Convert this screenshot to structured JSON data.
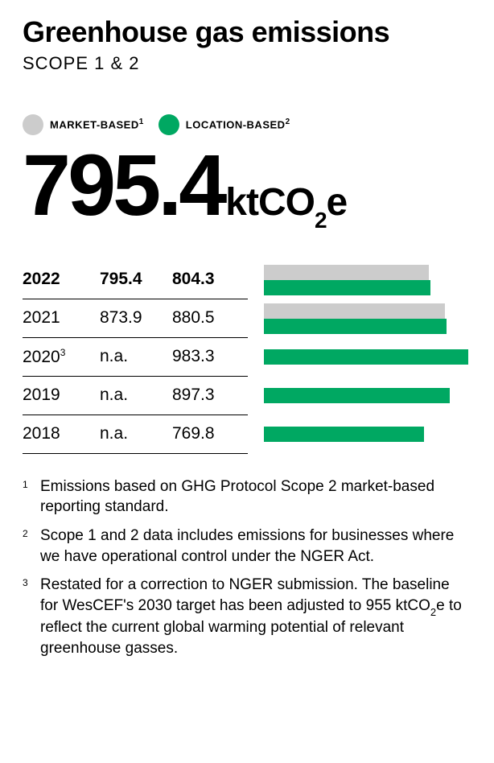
{
  "title": "Greenhouse gas emissions",
  "subtitle": "SCOPE 1 & 2",
  "legend": {
    "market": {
      "label": "MARKET-BASED",
      "sup": "1",
      "color": "#cccccc"
    },
    "location": {
      "label": "LOCATION-BASED",
      "sup": "2",
      "color": "#00a862"
    }
  },
  "hero": {
    "value": "795.4",
    "unit_prefix": "ktCO",
    "unit_sub": "2",
    "unit_suffix": "e"
  },
  "chart": {
    "max_value": 1000,
    "colors": {
      "market": "#cccccc",
      "location": "#00a862"
    },
    "rows": [
      {
        "year": "2022",
        "year_sup": "",
        "market": "795.4",
        "location": "804.3",
        "market_w": 79.5,
        "location_w": 80.4,
        "bold": true
      },
      {
        "year": "2021",
        "year_sup": "",
        "market": "873.9",
        "location": "880.5",
        "market_w": 87.4,
        "location_w": 88.1,
        "bold": false
      },
      {
        "year": "2020",
        "year_sup": "3",
        "market": "n.a.",
        "location": "983.3",
        "market_w": 0,
        "location_w": 98.3,
        "bold": false
      },
      {
        "year": "2019",
        "year_sup": "",
        "market": "n.a.",
        "location": "897.3",
        "market_w": 0,
        "location_w": 89.7,
        "bold": false
      },
      {
        "year": "2018",
        "year_sup": "",
        "market": "n.a.",
        "location": "769.8",
        "market_w": 0,
        "location_w": 77.0,
        "bold": false
      }
    ]
  },
  "footnotes": [
    {
      "num": "1",
      "text": "Emissions based on GHG Protocol Scope 2 market-based reporting standard."
    },
    {
      "num": "2",
      "text": "Scope 1 and 2 data includes emissions for businesses where we have operational control under the NGER Act."
    },
    {
      "num": "3",
      "text": "Restated for a correction to NGER submission. The baseline for WesCEF's 2030 target has been adjusted to 955 ktCO₂e to reflect the current global warming potential of relevant greenhouse gasses."
    }
  ]
}
